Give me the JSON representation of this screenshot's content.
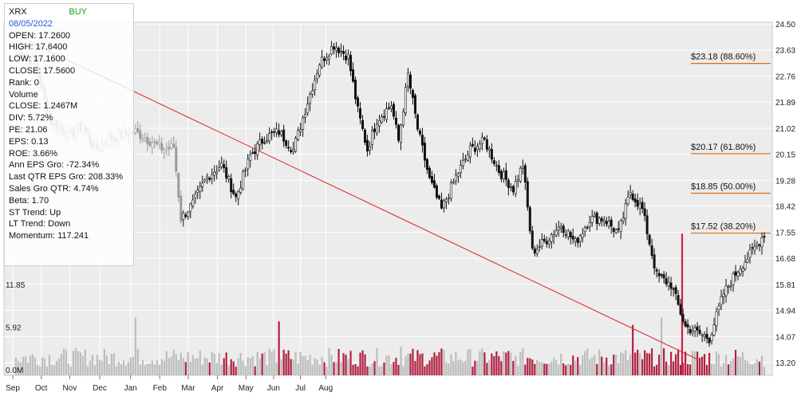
{
  "info": {
    "symbol": "XRX",
    "signal": "BUY",
    "date": "08/05/2022",
    "lines": [
      "OPEN: 17.2600",
      "HIGH: 17.6400",
      "LOW: 17.1600",
      "CLOSE: 17.5600",
      "Rank: 0",
      "Volume",
      "CLOSE: 1.2467M",
      "DIV: 5.72%",
      "PE: 21.06",
      "EPS: 0.13",
      "ROE: 3.66%",
      "Ann EPS Gro: -72.34%",
      "Last QTR EPS Gro: 208.33%",
      "Sales Gro QTR: 4.74%",
      "Beta: 1.70",
      "ST Trend: Up",
      "LT Trend: Down",
      "Momentum: 117.241"
    ]
  },
  "chart_data": {
    "type": "candlestick",
    "months": [
      "Sep",
      "Oct",
      "Nov",
      "Dec",
      "Jan",
      "Feb",
      "Mar",
      "Apr",
      "May",
      "Jun",
      "Jul",
      "Aug"
    ],
    "price_ticks": [
      "24.50",
      "23.63",
      "22.76",
      "21.89",
      "21.02",
      "20.15",
      "19.28",
      "18.42",
      "17.55",
      "16.68",
      "15.81",
      "14.94",
      "14.07",
      "13.20"
    ],
    "price_range": [
      13.2,
      24.5
    ],
    "volume_ticks": [
      "11.85",
      "5.92",
      "0.0M"
    ],
    "volume_range": [
      0,
      11.85
    ],
    "fib_levels": [
      {
        "price": 23.18,
        "label": "$23.18 (88.60%)"
      },
      {
        "price": 20.17,
        "label": "$20.17 (61.80%)"
      },
      {
        "price": 18.85,
        "label": "$18.85 (50.00%)"
      },
      {
        "price": 17.52,
        "label": "$17.52 (38.20%)"
      }
    ],
    "trendline": {
      "start_price": 23.9,
      "end_price": 13.3
    },
    "price_anchors": [
      [
        0,
        23.7
      ],
      [
        8,
        23.2
      ],
      [
        14,
        21.3
      ],
      [
        22,
        20.8
      ],
      [
        28,
        21.1
      ],
      [
        33,
        20.3
      ],
      [
        38,
        20.6
      ],
      [
        44,
        20.8
      ],
      [
        50,
        20.9
      ],
      [
        56,
        20.6
      ],
      [
        62,
        20.3
      ],
      [
        66,
        20.4
      ],
      [
        69,
        18.0
      ],
      [
        74,
        18.5
      ],
      [
        80,
        19.4
      ],
      [
        86,
        19.8
      ],
      [
        92,
        18.7
      ],
      [
        98,
        20.1
      ],
      [
        104,
        20.7
      ],
      [
        110,
        20.9
      ],
      [
        116,
        20.3
      ],
      [
        122,
        21.9
      ],
      [
        127,
        23.2
      ],
      [
        133,
        23.8
      ],
      [
        139,
        23.4
      ],
      [
        143,
        21.6
      ],
      [
        147,
        20.3
      ],
      [
        151,
        21.3
      ],
      [
        157,
        21.8
      ],
      [
        160,
        20.6
      ],
      [
        164,
        22.8
      ],
      [
        168,
        21.0
      ],
      [
        173,
        19.3
      ],
      [
        178,
        18.3
      ],
      [
        184,
        19.4
      ],
      [
        190,
        20.3
      ],
      [
        196,
        20.6
      ],
      [
        202,
        19.6
      ],
      [
        208,
        19.0
      ],
      [
        212,
        19.8
      ],
      [
        216,
        16.9
      ],
      [
        222,
        17.3
      ],
      [
        228,
        17.8
      ],
      [
        234,
        17.2
      ],
      [
        240,
        18.0
      ],
      [
        246,
        18.0
      ],
      [
        252,
        17.5
      ],
      [
        257,
        18.9
      ],
      [
        262,
        18.3
      ],
      [
        265,
        17.2
      ],
      [
        268,
        16.1
      ],
      [
        274,
        15.8
      ],
      [
        280,
        14.4
      ],
      [
        285,
        14.2
      ],
      [
        290,
        14.0
      ],
      [
        296,
        15.5
      ],
      [
        302,
        16.3
      ],
      [
        308,
        16.9
      ],
      [
        313,
        17.5
      ]
    ],
    "n_bars": 314,
    "volume_spikes": [
      [
        50,
        8.0
      ],
      [
        110,
        7.5
      ],
      [
        161,
        4.0
      ],
      [
        208,
        2.0
      ],
      [
        258,
        7.0
      ],
      [
        270,
        8.0
      ]
    ]
  }
}
